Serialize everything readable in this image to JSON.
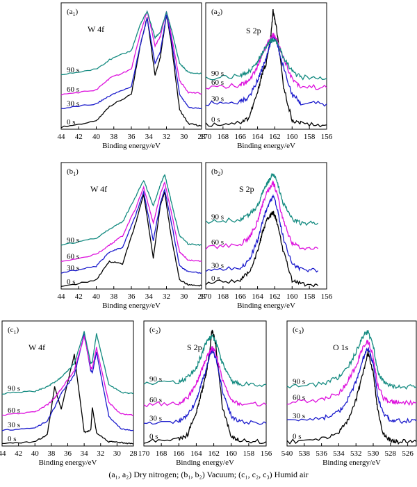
{
  "caption": "(a₁, a₂) Dry nitrogen; (b₁, b₂) Vacuum; (c₁, c₂, c₃) Humid air",
  "series_colors": {
    "0 s": "#000000",
    "30 s": "#1a1acc",
    "60 s": "#dd11dd",
    "90 s": "#138a80"
  },
  "chart_data": [
    {
      "panel_label": "a1",
      "label_main": "a",
      "label_sub": "1",
      "title": "W 4f",
      "type": "line",
      "xlabel": "Binding energy/eV",
      "xlim": [
        44,
        28
      ],
      "x_ticks": [
        44,
        42,
        40,
        38,
        36,
        34,
        32,
        30,
        28
      ],
      "series": [
        {
          "name": "0 s",
          "x": [
            44,
            40,
            38.5,
            36,
            35,
            34.2,
            33.3,
            32.7,
            32,
            31.5,
            30.5,
            29.5,
            28
          ],
          "y": [
            0.0,
            0.05,
            0.18,
            0.28,
            0.7,
            0.95,
            0.45,
            0.6,
            0.97,
            0.75,
            0.15,
            0.03,
            0.01
          ]
        },
        {
          "name": "30 s",
          "x": [
            44,
            40,
            38.5,
            36,
            35,
            34.2,
            33.3,
            32.7,
            32,
            31.5,
            30.5,
            29.5,
            28
          ],
          "y": [
            0.16,
            0.2,
            0.27,
            0.35,
            0.7,
            0.94,
            0.55,
            0.65,
            0.97,
            0.78,
            0.28,
            0.17,
            0.16
          ]
        },
        {
          "name": "60 s",
          "x": [
            44,
            40,
            38.5,
            36,
            35,
            34.2,
            33.3,
            32.7,
            32,
            31.5,
            30.5,
            29.5,
            28
          ],
          "y": [
            0.28,
            0.32,
            0.42,
            0.5,
            0.8,
            1.0,
            0.7,
            0.78,
            1.0,
            0.82,
            0.4,
            0.3,
            0.29
          ]
        },
        {
          "name": "90 s",
          "x": [
            44,
            40,
            38.5,
            36,
            35,
            34.2,
            33.3,
            32.7,
            32,
            31.5,
            30.5,
            29.5,
            28
          ],
          "y": [
            0.45,
            0.5,
            0.58,
            0.66,
            0.88,
            1.0,
            0.77,
            0.82,
            0.99,
            0.86,
            0.55,
            0.47,
            0.46
          ]
        }
      ]
    },
    {
      "panel_label": "a2",
      "label_main": "a",
      "label_sub": "2",
      "title": "S 2p",
      "type": "line",
      "xlabel": "Binding energy/eV",
      "xlim": [
        170,
        156
      ],
      "x_ticks": [
        170,
        168,
        166,
        164,
        162,
        160,
        158,
        156
      ],
      "series": [
        {
          "name": "0 s",
          "x": [
            170,
            166,
            165,
            164,
            163.5,
            163,
            162.5,
            162.2,
            161.8,
            161,
            160,
            159,
            156
          ],
          "y": [
            0.02,
            0.04,
            0.08,
            0.3,
            0.45,
            0.55,
            0.75,
            1.0,
            0.85,
            0.35,
            0.06,
            0.03,
            0.02
          ]
        },
        {
          "name": "30 s",
          "x": [
            170,
            166,
            165,
            164,
            163.5,
            163,
            162.5,
            162.2,
            161.8,
            161,
            160,
            159,
            156
          ],
          "y": [
            0.2,
            0.22,
            0.26,
            0.4,
            0.5,
            0.6,
            0.72,
            0.78,
            0.74,
            0.52,
            0.28,
            0.21,
            0.2
          ]
        },
        {
          "name": "60 s",
          "x": [
            170,
            166,
            165,
            164,
            163.5,
            163,
            162.5,
            162.2,
            161.8,
            161,
            160,
            159,
            156
          ],
          "y": [
            0.34,
            0.36,
            0.4,
            0.52,
            0.62,
            0.7,
            0.76,
            0.8,
            0.76,
            0.6,
            0.42,
            0.35,
            0.34
          ]
        },
        {
          "name": "90 s",
          "x": [
            170,
            166,
            165,
            164,
            163.5,
            163,
            162.5,
            162.2,
            161.8,
            161,
            160,
            159,
            156
          ],
          "y": [
            0.42,
            0.44,
            0.48,
            0.56,
            0.64,
            0.7,
            0.74,
            0.76,
            0.73,
            0.6,
            0.48,
            0.43,
            0.42
          ]
        }
      ]
    },
    {
      "panel_label": "b1",
      "label_main": "b",
      "label_sub": "1",
      "title": "W 4f",
      "type": "line",
      "xlabel": "Binding energy/eV",
      "xlim": [
        44,
        28
      ],
      "x_ticks": [
        44,
        42,
        40,
        38,
        36,
        34,
        32,
        30,
        28
      ],
      "series": [
        {
          "name": "0 s",
          "x": [
            44,
            40,
            38.5,
            37,
            35.5,
            34.6,
            33.5,
            32.7,
            32.2,
            31.5,
            30.5,
            29.5,
            28
          ],
          "y": [
            0.0,
            0.06,
            0.22,
            0.2,
            0.55,
            0.8,
            0.25,
            0.7,
            0.82,
            0.45,
            0.06,
            0.02,
            0.01
          ]
        },
        {
          "name": "30 s",
          "x": [
            44,
            40,
            38.5,
            37,
            35.5,
            34.6,
            33.5,
            32.7,
            32.2,
            31.5,
            30.5,
            29.5,
            28
          ],
          "y": [
            0.12,
            0.18,
            0.3,
            0.34,
            0.62,
            0.82,
            0.4,
            0.72,
            0.84,
            0.58,
            0.18,
            0.13,
            0.12
          ]
        },
        {
          "name": "60 s",
          "x": [
            44,
            40,
            38.5,
            37,
            35.5,
            34.6,
            33.5,
            32.7,
            32.2,
            31.5,
            30.5,
            29.5,
            28
          ],
          "y": [
            0.22,
            0.28,
            0.36,
            0.44,
            0.68,
            0.86,
            0.55,
            0.8,
            0.9,
            0.66,
            0.3,
            0.23,
            0.22
          ]
        },
        {
          "name": "90 s",
          "x": [
            44,
            40,
            38.5,
            37,
            35.5,
            34.6,
            33.5,
            32.7,
            32.2,
            31.5,
            30.5,
            29.5,
            28
          ],
          "y": [
            0.36,
            0.42,
            0.5,
            0.56,
            0.78,
            0.92,
            0.7,
            0.88,
            0.97,
            0.75,
            0.44,
            0.37,
            0.36
          ]
        }
      ]
    },
    {
      "panel_label": "b2",
      "label_main": "b",
      "label_sub": "2",
      "title": "S 2p",
      "type": "line",
      "xlabel": "Binding energy/eV",
      "xlim": [
        170,
        156
      ],
      "x_ticks": [
        170,
        168,
        166,
        164,
        162,
        160,
        158,
        156
      ],
      "series": [
        {
          "name": "0 s",
          "x": [
            170,
            166,
            165,
            164,
            163.5,
            163,
            162.5,
            162.2,
            161.8,
            161,
            160,
            159,
            157
          ],
          "y": [
            0.03,
            0.06,
            0.12,
            0.3,
            0.45,
            0.56,
            0.62,
            0.64,
            0.58,
            0.3,
            0.06,
            0.03,
            0.01
          ]
        },
        {
          "name": "30 s",
          "x": [
            170,
            166,
            165,
            164,
            163.5,
            163,
            162.5,
            162.2,
            161.8,
            161,
            160,
            159,
            157
          ],
          "y": [
            0.14,
            0.17,
            0.22,
            0.4,
            0.55,
            0.66,
            0.74,
            0.78,
            0.7,
            0.42,
            0.2,
            0.15,
            0.14
          ]
        },
        {
          "name": "60 s",
          "x": [
            170,
            166,
            165,
            164,
            163.5,
            163,
            162.5,
            162.2,
            161.8,
            161,
            160,
            159,
            157
          ],
          "y": [
            0.34,
            0.37,
            0.42,
            0.56,
            0.7,
            0.8,
            0.86,
            0.9,
            0.82,
            0.56,
            0.38,
            0.34,
            0.33
          ]
        },
        {
          "name": "90 s",
          "x": [
            170,
            166,
            165,
            164,
            163.5,
            163,
            162.5,
            162.2,
            161.8,
            161,
            160,
            159,
            157
          ],
          "y": [
            0.56,
            0.58,
            0.62,
            0.7,
            0.8,
            0.88,
            0.94,
            0.97,
            0.92,
            0.72,
            0.58,
            0.55,
            0.55
          ]
        }
      ]
    },
    {
      "panel_label": "c1",
      "label_main": "c",
      "label_sub": "1",
      "title": "W 4f",
      "type": "line",
      "xlabel": "Binding energy/eV",
      "xlim": [
        44,
        28
      ],
      "x_ticks": [
        44,
        42,
        40,
        38,
        36,
        34,
        32,
        30,
        28
      ],
      "series": [
        {
          "name": "0 s",
          "x": [
            44,
            40,
            38.5,
            37.6,
            36.8,
            35.2,
            34,
            33.2,
            33,
            32.5,
            31,
            29.5,
            28
          ],
          "y": [
            0.0,
            0.02,
            0.08,
            0.5,
            0.3,
            0.78,
            0.1,
            0.12,
            0.32,
            0.1,
            0.02,
            0.01,
            0.0
          ]
        },
        {
          "name": "30 s",
          "x": [
            44,
            40,
            38.5,
            37.6,
            36.8,
            35.2,
            34,
            33.2,
            33,
            32.5,
            31,
            29.5,
            28
          ],
          "y": [
            0.12,
            0.14,
            0.2,
            0.32,
            0.44,
            0.6,
            0.96,
            0.64,
            0.62,
            0.8,
            0.24,
            0.13,
            0.12
          ]
        },
        {
          "name": "60 s",
          "x": [
            44,
            40,
            38.5,
            37.6,
            36.8,
            35.2,
            34,
            33.2,
            33,
            32.5,
            31,
            29.5,
            28
          ],
          "y": [
            0.25,
            0.28,
            0.34,
            0.4,
            0.48,
            0.64,
            0.94,
            0.66,
            0.66,
            0.84,
            0.36,
            0.26,
            0.25
          ]
        },
        {
          "name": "90 s",
          "x": [
            44,
            40,
            38.5,
            37.6,
            36.8,
            35.2,
            34,
            33.2,
            33,
            32.5,
            31,
            29.5,
            28
          ],
          "y": [
            0.44,
            0.46,
            0.5,
            0.54,
            0.58,
            0.7,
            0.98,
            0.7,
            0.72,
            0.96,
            0.52,
            0.45,
            0.44
          ]
        }
      ]
    },
    {
      "panel_label": "c2",
      "label_main": "c",
      "label_sub": "2",
      "title": "S 2p",
      "type": "line",
      "xlabel": "Binding energy/eV",
      "xlim": [
        170,
        156
      ],
      "x_ticks": [
        170,
        168,
        166,
        164,
        162,
        160,
        158,
        156
      ],
      "series": [
        {
          "name": "0 s",
          "x": [
            170,
            166,
            165,
            164,
            163.5,
            163,
            162.5,
            162.2,
            161.8,
            161,
            160,
            159,
            156
          ],
          "y": [
            0.02,
            0.04,
            0.08,
            0.28,
            0.42,
            0.56,
            0.78,
            1.0,
            0.88,
            0.32,
            0.06,
            0.03,
            0.02
          ]
        },
        {
          "name": "30 s",
          "x": [
            170,
            166,
            165,
            164,
            163.5,
            163,
            162.5,
            162.2,
            161.8,
            161,
            160,
            159,
            156
          ],
          "y": [
            0.18,
            0.2,
            0.24,
            0.38,
            0.5,
            0.62,
            0.76,
            0.82,
            0.76,
            0.46,
            0.24,
            0.19,
            0.18
          ]
        },
        {
          "name": "60 s",
          "x": [
            170,
            166,
            165,
            164,
            163.5,
            163,
            162.5,
            162.2,
            161.8,
            161,
            160,
            159,
            156
          ],
          "y": [
            0.34,
            0.36,
            0.4,
            0.52,
            0.62,
            0.72,
            0.8,
            0.84,
            0.8,
            0.56,
            0.38,
            0.35,
            0.34
          ]
        },
        {
          "name": "90 s",
          "x": [
            170,
            166,
            165,
            164,
            163.5,
            163,
            162.5,
            162.2,
            161.8,
            161,
            160,
            159,
            156
          ],
          "y": [
            0.52,
            0.54,
            0.58,
            0.66,
            0.76,
            0.86,
            0.92,
            0.94,
            0.9,
            0.7,
            0.55,
            0.52,
            0.52
          ]
        }
      ]
    },
    {
      "panel_label": "c3",
      "label_main": "c",
      "label_sub": "3",
      "title": "O 1s",
      "type": "line",
      "xlabel": "Binding energy/eV",
      "xlim": [
        540,
        525
      ],
      "x_ticks": [
        540,
        538,
        536,
        534,
        532,
        530,
        528,
        526
      ],
      "series": [
        {
          "name": "0 s",
          "x": [
            540,
            536,
            534,
            533,
            532,
            531.2,
            530.6,
            530,
            529.5,
            528.8,
            528,
            527,
            525
          ],
          "y": [
            0.02,
            0.04,
            0.1,
            0.2,
            0.38,
            0.62,
            0.8,
            0.62,
            0.3,
            0.08,
            0.03,
            0.02,
            0.02
          ]
        },
        {
          "name": "30 s",
          "x": [
            540,
            536,
            534,
            533,
            532,
            531.2,
            530.6,
            530,
            529.5,
            528.8,
            528,
            527,
            525
          ],
          "y": [
            0.2,
            0.22,
            0.28,
            0.38,
            0.54,
            0.74,
            0.84,
            0.7,
            0.42,
            0.26,
            0.21,
            0.2,
            0.2
          ]
        },
        {
          "name": "60 s",
          "x": [
            540,
            536,
            534,
            533,
            532,
            531.2,
            530.6,
            530,
            529.5,
            528.8,
            528,
            527,
            525
          ],
          "y": [
            0.36,
            0.38,
            0.44,
            0.54,
            0.68,
            0.84,
            0.9,
            0.76,
            0.52,
            0.4,
            0.37,
            0.36,
            0.36
          ]
        },
        {
          "name": "90 s",
          "x": [
            540,
            536,
            534,
            533,
            532,
            531.2,
            530.6,
            530,
            529.5,
            528.8,
            528,
            527,
            525
          ],
          "y": [
            0.5,
            0.52,
            0.58,
            0.66,
            0.8,
            0.94,
            0.98,
            0.86,
            0.64,
            0.54,
            0.51,
            0.5,
            0.5
          ]
        }
      ]
    }
  ]
}
